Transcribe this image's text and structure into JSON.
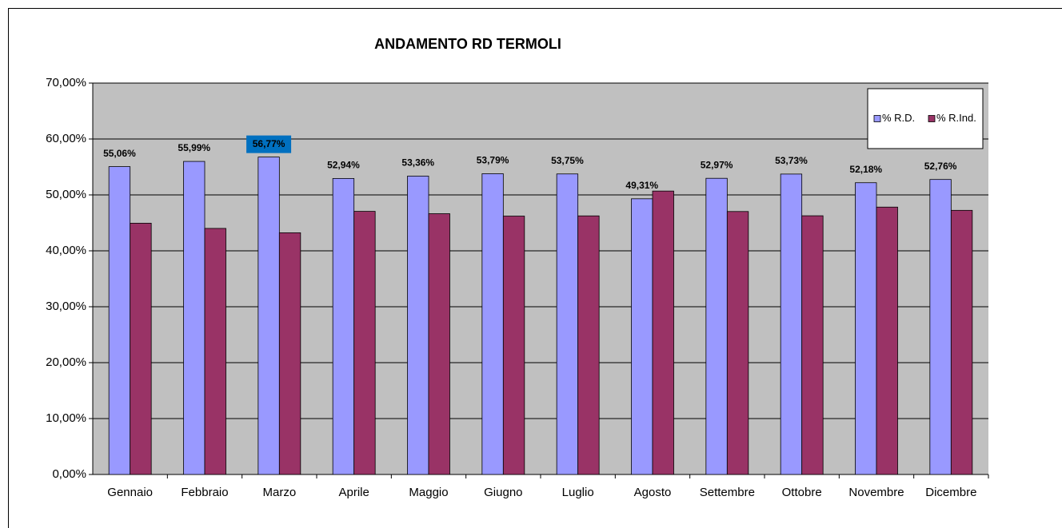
{
  "chart_data": {
    "type": "bar",
    "title": "ANDAMENTO  RD TERMOLI",
    "categories": [
      "Gennaio",
      "Febbraio",
      "Marzo",
      "Aprile",
      "Maggio",
      "Giugno",
      "Luglio",
      "Agosto",
      "Settembre",
      "Ottobre",
      "Novembre",
      "Dicembre"
    ],
    "series": [
      {
        "name": "% R.D.",
        "color": "#9999ff",
        "values": [
          55.06,
          55.99,
          56.77,
          52.94,
          53.36,
          53.79,
          53.75,
          49.31,
          52.97,
          53.73,
          52.18,
          52.76
        ],
        "value_labels": [
          "55,06%",
          "55,99%",
          "56,77%",
          "52,94%",
          "53,36%",
          "53,79%",
          "53,75%",
          "49,31%",
          "52,97%",
          "53,73%",
          "52,18%",
          "52,76%"
        ]
      },
      {
        "name": "% R.Ind.",
        "color": "#993366",
        "values": [
          44.94,
          44.01,
          43.23,
          47.06,
          46.64,
          46.21,
          46.25,
          50.69,
          47.03,
          46.27,
          47.82,
          47.24
        ]
      }
    ],
    "ylim": [
      0,
      70
    ],
    "yticks": [
      {
        "value": 0,
        "label": "0,00%"
      },
      {
        "value": 10,
        "label": "10,00%"
      },
      {
        "value": 20,
        "label": "20,00%"
      },
      {
        "value": 30,
        "label": "30,00%"
      },
      {
        "value": 40,
        "label": "40,00%"
      },
      {
        "value": 50,
        "label": "50,00%"
      },
      {
        "value": 60,
        "label": "60,00%"
      },
      {
        "value": 70,
        "label": "70,00%"
      }
    ],
    "grid": true,
    "legend": "upper right"
  }
}
